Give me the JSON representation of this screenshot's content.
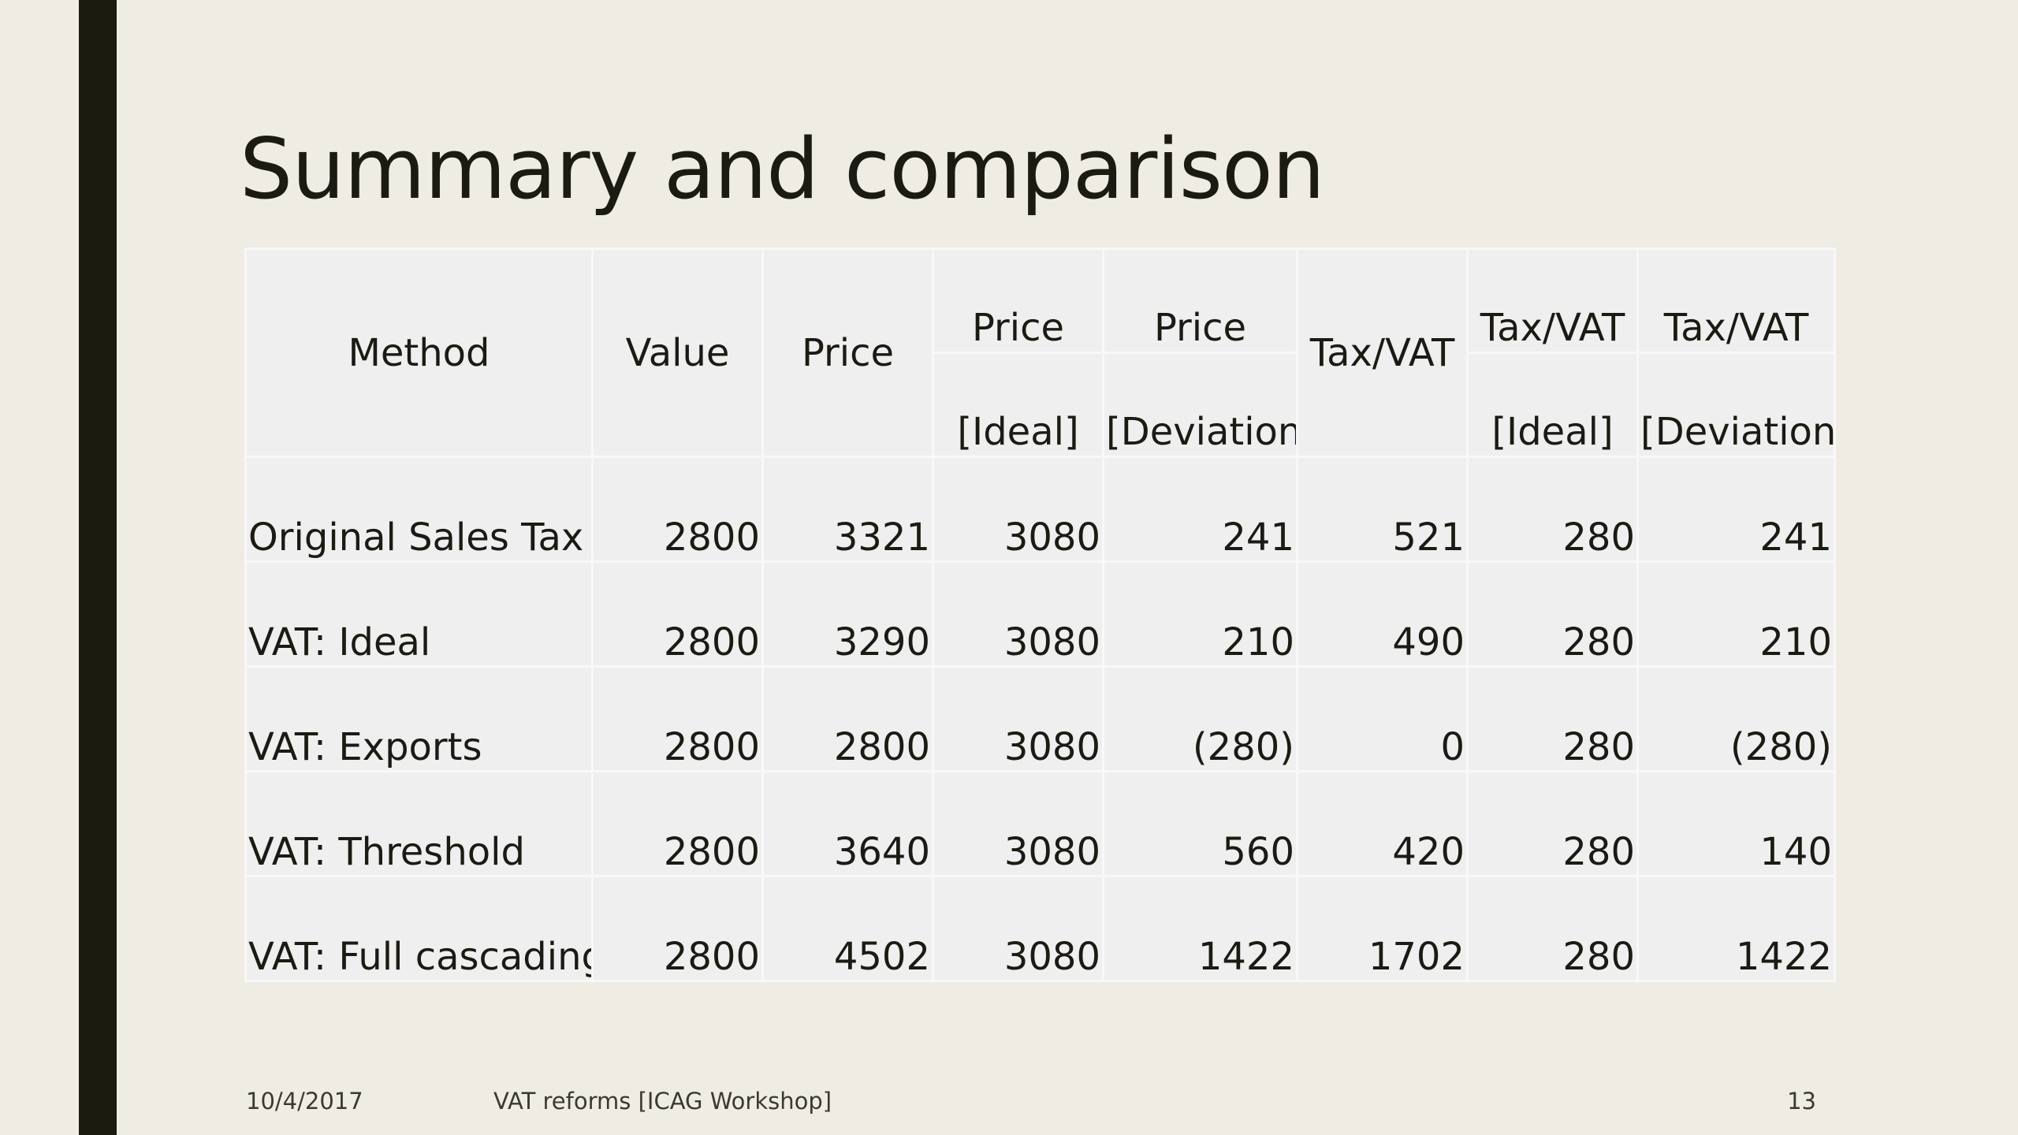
{
  "slide": {
    "title": "Summary and comparison",
    "footer": {
      "date": "10/4/2017",
      "title": "VAT reforms [ICAG Workshop]",
      "page": "13"
    }
  },
  "table": {
    "headers": {
      "method": "Method",
      "value": "Value",
      "price": "Price",
      "price_ideal_top": "Price",
      "price_ideal_bottom": "[Ideal]",
      "price_dev_top": "Price",
      "price_dev_bottom": "[Deviation]",
      "taxvat": "Tax/VAT",
      "taxvat_ideal_top": "Tax/VAT",
      "taxvat_ideal_bottom": "[Ideal]",
      "taxvat_dev_top": "Tax/VAT",
      "taxvat_dev_bottom": "[Deviation]"
    },
    "rows": [
      [
        "Original Sales Tax",
        "2800",
        "3321",
        "3080",
        "241",
        "521",
        "280",
        "241"
      ],
      [
        "VAT: Ideal",
        "2800",
        "3290",
        "3080",
        "210",
        "490",
        "280",
        "210"
      ],
      [
        "VAT: Exports",
        "2800",
        "2800",
        "3080",
        "(280)",
        "0",
        "280",
        "(280)"
      ],
      [
        "VAT: Threshold",
        "2800",
        "3640",
        "3080",
        "560",
        "420",
        "280",
        "140"
      ],
      [
        "VAT: Full cascading",
        "2800",
        "4502",
        "3080",
        "1422",
        "1702",
        "280",
        "1422"
      ]
    ]
  },
  "colors": {
    "background": "#efece4",
    "accent_bar": "#1b1b10",
    "table_cell": "#efefef",
    "table_border": "#f8f8f8",
    "text": "#1b1b14"
  }
}
